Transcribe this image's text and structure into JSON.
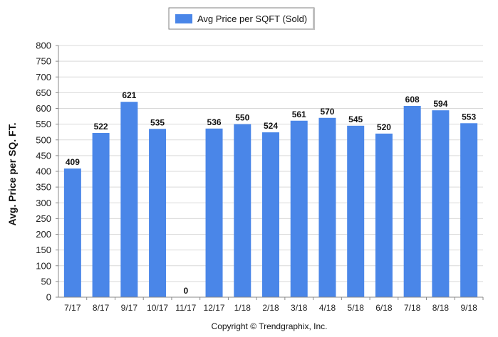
{
  "chart_data": {
    "type": "bar",
    "categories": [
      "7/17",
      "8/17",
      "9/17",
      "10/17",
      "11/17",
      "12/17",
      "1/18",
      "2/18",
      "3/18",
      "4/18",
      "5/18",
      "6/18",
      "7/18",
      "8/18",
      "9/18"
    ],
    "series": [
      {
        "name": "Avg Price per SQFT (Sold)",
        "values": [
          409,
          522,
          621,
          535,
          0,
          536,
          550,
          524,
          561,
          570,
          545,
          520,
          608,
          594,
          553
        ],
        "color": "#4a86e8"
      }
    ],
    "xlabel": "",
    "ylabel": "Avg. Price per SQ. FT.",
    "ylim": [
      0,
      800
    ],
    "yticks": [
      0,
      50,
      100,
      150,
      200,
      250,
      300,
      350,
      400,
      450,
      500,
      550,
      600,
      650,
      700,
      750,
      800
    ],
    "grid": true,
    "legend_position": "top-center",
    "data_labels": true
  },
  "footer": {
    "copyright": "Copyright © Trendgraphix, Inc."
  },
  "colors": {
    "bar": "#4a86e8",
    "grid": "#d9d9d9",
    "axis": "#888888"
  }
}
